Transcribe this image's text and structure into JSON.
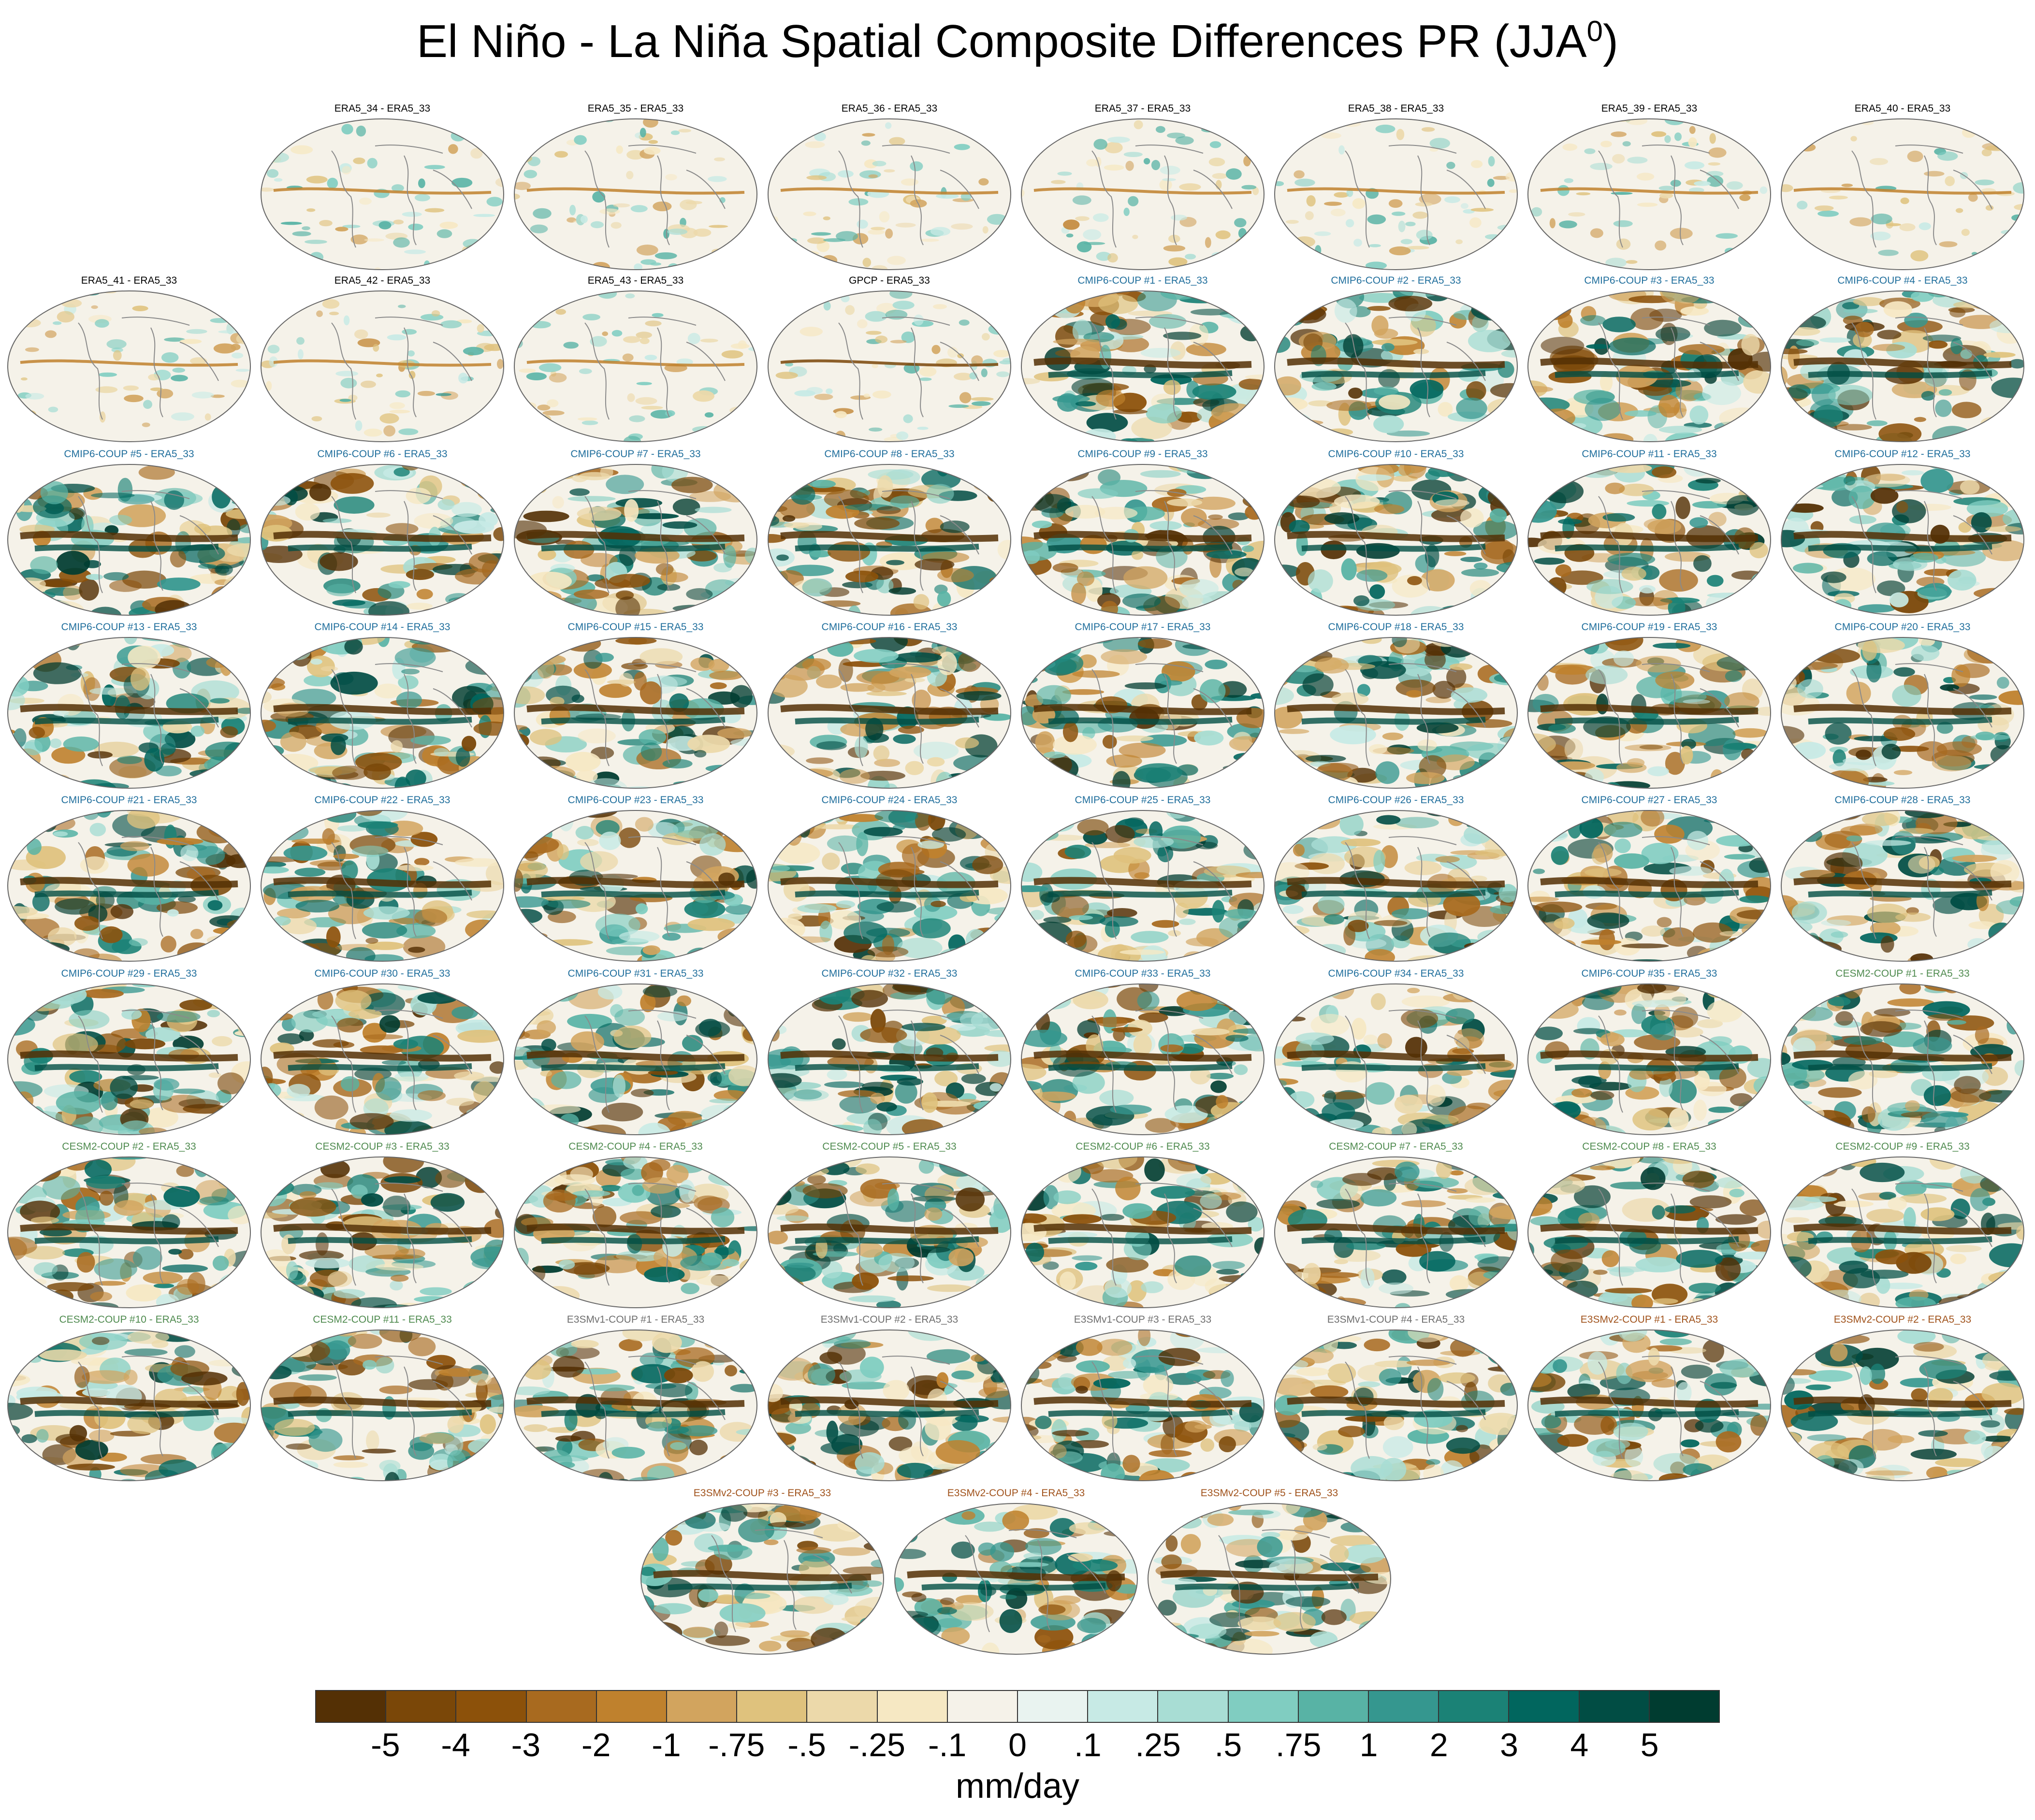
{
  "chart_data": {
    "type": "heatmap",
    "title": "El Niño - La Niña Spatial Composite Differences PR (JJA",
    "title_superscript": "0",
    "title_suffix": ")",
    "panels_per_row": [
      7,
      8,
      8,
      8,
      8,
      8,
      8,
      8,
      3
    ],
    "panels": [
      {
        "label": "ERA5_34 - ERA5_33",
        "group": "era5"
      },
      {
        "label": "ERA5_35 - ERA5_33",
        "group": "era5"
      },
      {
        "label": "ERA5_36 - ERA5_33",
        "group": "era5"
      },
      {
        "label": "ERA5_37 - ERA5_33",
        "group": "era5"
      },
      {
        "label": "ERA5_38 - ERA5_33",
        "group": "era5"
      },
      {
        "label": "ERA5_39 - ERA5_33",
        "group": "era5"
      },
      {
        "label": "ERA5_40 - ERA5_33",
        "group": "era5"
      },
      {
        "label": "ERA5_41 - ERA5_33",
        "group": "era5"
      },
      {
        "label": "ERA5_42 - ERA5_33",
        "group": "era5"
      },
      {
        "label": "ERA5_43 - ERA5_33",
        "group": "era5"
      },
      {
        "label": "GPCP - ERA5_33",
        "group": "gpcp"
      },
      {
        "label": "CMIP6-COUP  #1 - ERA5_33",
        "group": "cmip6"
      },
      {
        "label": "CMIP6-COUP  #2 - ERA5_33",
        "group": "cmip6"
      },
      {
        "label": "CMIP6-COUP  #3 - ERA5_33",
        "group": "cmip6"
      },
      {
        "label": "CMIP6-COUP  #4 - ERA5_33",
        "group": "cmip6"
      },
      {
        "label": "CMIP6-COUP  #5 - ERA5_33",
        "group": "cmip6"
      },
      {
        "label": "CMIP6-COUP  #6 - ERA5_33",
        "group": "cmip6"
      },
      {
        "label": "CMIP6-COUP  #7 - ERA5_33",
        "group": "cmip6"
      },
      {
        "label": "CMIP6-COUP  #8 - ERA5_33",
        "group": "cmip6"
      },
      {
        "label": "CMIP6-COUP  #9 - ERA5_33",
        "group": "cmip6"
      },
      {
        "label": "CMIP6-COUP  #10 - ERA5_33",
        "group": "cmip6"
      },
      {
        "label": "CMIP6-COUP  #11 - ERA5_33",
        "group": "cmip6"
      },
      {
        "label": "CMIP6-COUP  #12 - ERA5_33",
        "group": "cmip6"
      },
      {
        "label": "CMIP6-COUP  #13 - ERA5_33",
        "group": "cmip6"
      },
      {
        "label": "CMIP6-COUP  #14 - ERA5_33",
        "group": "cmip6"
      },
      {
        "label": "CMIP6-COUP  #15 - ERA5_33",
        "group": "cmip6"
      },
      {
        "label": "CMIP6-COUP  #16 - ERA5_33",
        "group": "cmip6"
      },
      {
        "label": "CMIP6-COUP  #17 - ERA5_33",
        "group": "cmip6"
      },
      {
        "label": "CMIP6-COUP  #18 - ERA5_33",
        "group": "cmip6"
      },
      {
        "label": "CMIP6-COUP  #19 - ERA5_33",
        "group": "cmip6"
      },
      {
        "label": "CMIP6-COUP  #20 - ERA5_33",
        "group": "cmip6"
      },
      {
        "label": "CMIP6-COUP  #21 - ERA5_33",
        "group": "cmip6"
      },
      {
        "label": "CMIP6-COUP  #22 - ERA5_33",
        "group": "cmip6"
      },
      {
        "label": "CMIP6-COUP  #23 - ERA5_33",
        "group": "cmip6"
      },
      {
        "label": "CMIP6-COUP  #24 - ERA5_33",
        "group": "cmip6"
      },
      {
        "label": "CMIP6-COUP  #25 - ERA5_33",
        "group": "cmip6"
      },
      {
        "label": "CMIP6-COUP  #26 - ERA5_33",
        "group": "cmip6"
      },
      {
        "label": "CMIP6-COUP  #27 - ERA5_33",
        "group": "cmip6"
      },
      {
        "label": "CMIP6-COUP  #28 - ERA5_33",
        "group": "cmip6"
      },
      {
        "label": "CMIP6-COUP  #29 - ERA5_33",
        "group": "cmip6"
      },
      {
        "label": "CMIP6-COUP  #30 - ERA5_33",
        "group": "cmip6"
      },
      {
        "label": "CMIP6-COUP  #31 - ERA5_33",
        "group": "cmip6"
      },
      {
        "label": "CMIP6-COUP  #32 - ERA5_33",
        "group": "cmip6"
      },
      {
        "label": "CMIP6-COUP  #33 - ERA5_33",
        "group": "cmip6"
      },
      {
        "label": "CMIP6-COUP  #34 - ERA5_33",
        "group": "cmip6"
      },
      {
        "label": "CMIP6-COUP  #35 - ERA5_33",
        "group": "cmip6"
      },
      {
        "label": "CESM2-COUP  #1 - ERA5_33",
        "group": "cesm2"
      },
      {
        "label": "CESM2-COUP  #2 - ERA5_33",
        "group": "cesm2"
      },
      {
        "label": "CESM2-COUP  #3 - ERA5_33",
        "group": "cesm2"
      },
      {
        "label": "CESM2-COUP  #4 - ERA5_33",
        "group": "cesm2"
      },
      {
        "label": "CESM2-COUP  #5 - ERA5_33",
        "group": "cesm2"
      },
      {
        "label": "CESM2-COUP  #6 - ERA5_33",
        "group": "cesm2"
      },
      {
        "label": "CESM2-COUP  #7 - ERA5_33",
        "group": "cesm2"
      },
      {
        "label": "CESM2-COUP  #8 - ERA5_33",
        "group": "cesm2"
      },
      {
        "label": "CESM2-COUP  #9 - ERA5_33",
        "group": "cesm2"
      },
      {
        "label": "CESM2-COUP  #10 - ERA5_33",
        "group": "cesm2"
      },
      {
        "label": "CESM2-COUP  #11 - ERA5_33",
        "group": "cesm2"
      },
      {
        "label": "E3SMv1-COUP #1 - ERA5_33",
        "group": "e3smv1"
      },
      {
        "label": "E3SMv1-COUP #2 - ERA5_33",
        "group": "e3smv1"
      },
      {
        "label": "E3SMv1-COUP #3 - ERA5_33",
        "group": "e3smv1"
      },
      {
        "label": "E3SMv1-COUP #4 - ERA5_33",
        "group": "e3smv1"
      },
      {
        "label": "E3SMv2-COUP #1 - ERA5_33",
        "group": "e3smv2"
      },
      {
        "label": "E3SMv2-COUP #2 - ERA5_33",
        "group": "e3smv2"
      },
      {
        "label": "E3SMv2-COUP #3 - ERA5_33",
        "group": "e3smv2"
      },
      {
        "label": "E3SMv2-COUP #4 - ERA5_33",
        "group": "e3smv2"
      },
      {
        "label": "E3SMv2-COUP #5 - ERA5_33",
        "group": "e3smv2"
      }
    ],
    "group_colors": {
      "era5": "#000000",
      "gpcp": "#000000",
      "cmip6": "#1f6e9c",
      "cesm2": "#4e8a4e",
      "e3smv1": "#6e6e6e",
      "e3smv2": "#a0521b"
    },
    "colorbar": {
      "colors": [
        "#543005",
        "#7a4708",
        "#8c510a",
        "#a86a1f",
        "#bf812d",
        "#d2a45e",
        "#dfc27d",
        "#ecd9aa",
        "#f6e8c3",
        "#f5f2e9",
        "#e9f3f0",
        "#c7eae5",
        "#a8ddd4",
        "#80cdc1",
        "#58b3a5",
        "#35978f",
        "#1b8276",
        "#01665e",
        "#014d44",
        "#003c30"
      ],
      "tick_labels": [
        "-5",
        "-4",
        "-3",
        "-2",
        "-1",
        "-.75",
        "-.5",
        "-.25",
        "-.1",
        "0",
        ".1",
        ".25",
        ".5",
        ".75",
        "1",
        "2",
        "3",
        "4",
        "5"
      ],
      "units": "mm/day"
    }
  }
}
